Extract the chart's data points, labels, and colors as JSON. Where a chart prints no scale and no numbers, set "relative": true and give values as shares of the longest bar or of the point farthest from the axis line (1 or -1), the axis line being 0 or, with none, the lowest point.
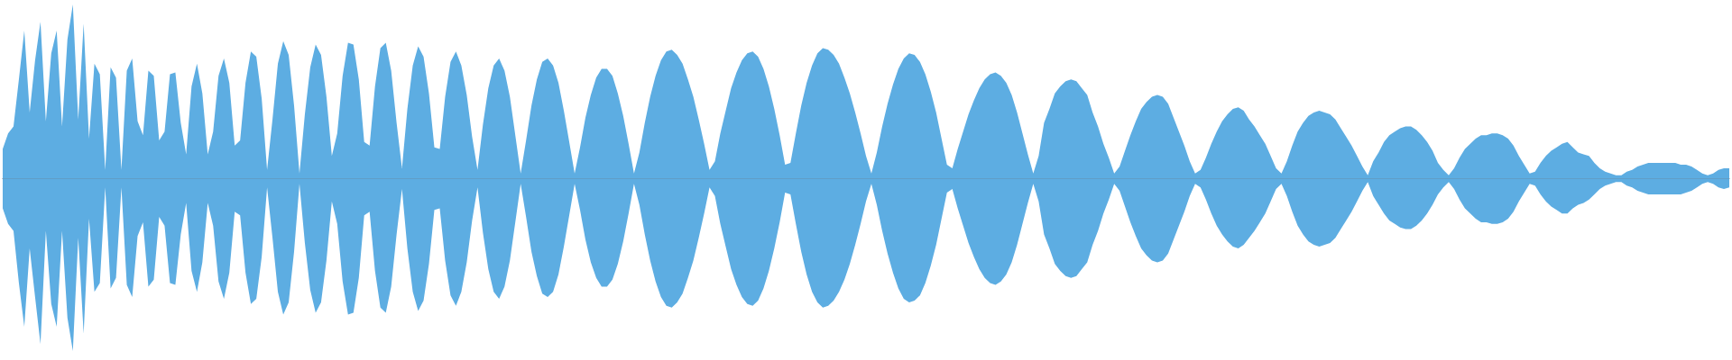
{
  "chart_data": {
    "type": "area",
    "relative": true,
    "marker": "none",
    "categories": [
      null,
      null,
      null,
      null,
      null,
      null,
      null,
      null,
      null,
      null,
      null,
      null,
      null,
      null,
      null,
      null,
      null,
      null,
      null,
      null,
      null,
      null,
      null,
      null,
      null,
      null,
      null,
      null,
      null,
      null,
      null,
      null,
      null,
      null,
      null,
      null,
      null,
      null,
      null,
      null,
      null,
      null,
      null,
      null,
      null,
      null,
      null,
      null,
      null,
      null,
      null,
      null,
      null,
      null,
      null,
      null,
      null,
      null,
      null,
      null,
      null,
      null,
      null,
      null,
      null,
      null,
      null,
      null,
      null,
      null,
      null,
      null,
      null,
      null,
      null,
      null,
      null,
      null,
      null,
      null,
      null,
      null,
      null,
      null,
      null,
      null,
      null,
      null,
      null,
      null,
      null,
      null,
      null,
      null,
      null,
      null,
      null,
      null,
      null,
      null,
      null,
      null,
      null,
      null,
      null,
      null,
      null,
      null,
      null,
      null,
      null,
      null,
      null,
      null,
      null,
      null,
      null,
      null,
      null,
      null,
      null,
      null,
      null,
      null,
      null,
      null,
      null,
      null,
      null,
      null,
      null,
      null,
      null,
      null,
      null,
      null,
      null,
      null,
      null,
      null,
      null,
      null,
      null,
      null,
      null,
      null,
      null,
      null,
      null,
      null,
      null,
      null,
      null,
      null,
      null,
      null,
      null,
      null,
      null,
      null,
      null,
      null,
      null,
      null,
      null,
      null,
      null,
      null,
      null,
      null,
      null,
      null,
      null,
      null,
      null,
      null,
      null,
      null,
      null,
      null,
      null,
      null,
      null,
      null,
      null,
      null,
      null,
      null,
      null,
      null,
      null,
      null,
      null,
      null,
      null,
      null,
      null,
      null,
      null,
      null,
      null,
      null,
      null,
      null,
      null,
      null,
      null,
      null,
      null,
      null,
      null,
      null,
      null,
      null,
      null,
      null,
      null,
      null,
      null,
      null,
      null,
      null,
      null,
      null,
      null,
      null,
      null,
      null,
      null,
      null,
      null,
      null,
      null,
      null,
      null,
      null,
      null,
      null,
      null,
      null,
      null,
      null,
      null,
      null,
      null,
      null,
      null,
      null,
      null,
      null,
      null,
      null,
      null,
      null,
      null,
      null,
      null,
      null,
      null,
      null,
      null,
      null,
      null,
      null,
      null,
      null,
      null,
      null,
      null,
      null,
      null,
      null,
      null,
      null,
      null,
      null,
      null,
      null,
      null,
      null,
      null,
      null,
      null,
      null,
      null,
      null,
      null,
      null,
      null,
      null,
      null,
      null,
      null,
      null,
      null,
      null,
      null,
      null,
      null,
      null,
      null,
      null,
      null,
      null,
      null,
      null,
      null,
      null,
      null,
      null,
      null,
      null,
      null,
      null,
      null,
      null,
      null,
      null,
      null,
      null,
      null
    ],
    "series": [
      {
        "color": "#5dade2",
        "values": [
          0.17,
          0.26,
          0.3,
          0.57,
          0.85,
          0.38,
          0.68,
          0.9,
          0.33,
          0.72,
          0.85,
          0.3,
          0.8,
          1.0,
          0.34,
          0.89,
          0.23,
          0.66,
          0.6,
          0.05,
          0.64,
          0.58,
          0.05,
          0.62,
          0.69,
          0.33,
          0.25,
          0.62,
          0.59,
          0.22,
          0.27,
          0.6,
          0.61,
          0.32,
          0.14,
          0.53,
          0.66,
          0.49,
          0.14,
          0.27,
          0.59,
          0.69,
          0.55,
          0.19,
          0.22,
          0.55,
          0.73,
          0.7,
          0.46,
          0.05,
          0.34,
          0.66,
          0.79,
          0.71,
          0.42,
          0.03,
          0.37,
          0.64,
          0.77,
          0.71,
          0.47,
          0.13,
          0.26,
          0.59,
          0.78,
          0.77,
          0.57,
          0.21,
          0.19,
          0.53,
          0.75,
          0.78,
          0.62,
          0.32,
          0.06,
          0.4,
          0.65,
          0.76,
          0.7,
          0.49,
          0.18,
          0.17,
          0.47,
          0.67,
          0.73,
          0.65,
          0.48,
          0.24,
          0.05,
          0.31,
          0.52,
          0.65,
          0.69,
          0.62,
          0.47,
          0.25,
          0.03,
          0.22,
          0.42,
          0.57,
          0.67,
          0.69,
          0.65,
          0.55,
          0.39,
          0.21,
          0.03,
          0.18,
          0.35,
          0.48,
          0.58,
          0.63,
          0.63,
          0.59,
          0.49,
          0.36,
          0.2,
          0.03,
          0.15,
          0.32,
          0.47,
          0.59,
          0.68,
          0.73,
          0.74,
          0.71,
          0.66,
          0.57,
          0.47,
          0.34,
          0.2,
          0.05,
          0.1,
          0.26,
          0.39,
          0.52,
          0.61,
          0.68,
          0.72,
          0.73,
          0.7,
          0.63,
          0.53,
          0.4,
          0.25,
          0.08,
          0.09,
          0.26,
          0.42,
          0.55,
          0.65,
          0.72,
          0.75,
          0.74,
          0.71,
          0.66,
          0.58,
          0.49,
          0.38,
          0.26,
          0.13,
          0.03,
          0.15,
          0.3,
          0.43,
          0.54,
          0.63,
          0.69,
          0.72,
          0.71,
          0.67,
          0.6,
          0.5,
          0.38,
          0.23,
          0.08,
          0.06,
          0.17,
          0.27,
          0.37,
          0.45,
          0.52,
          0.57,
          0.6,
          0.61,
          0.59,
          0.55,
          0.48,
          0.38,
          0.26,
          0.14,
          0.03,
          0.13,
          0.32,
          0.4,
          0.49,
          0.53,
          0.56,
          0.57,
          0.56,
          0.52,
          0.48,
          0.38,
          0.3,
          0.2,
          0.12,
          0.03,
          0.07,
          0.16,
          0.25,
          0.33,
          0.4,
          0.44,
          0.47,
          0.48,
          0.47,
          0.43,
          0.35,
          0.27,
          0.19,
          0.1,
          0.03,
          0.05,
          0.12,
          0.2,
          0.27,
          0.33,
          0.37,
          0.4,
          0.41,
          0.39,
          0.34,
          0.3,
          0.25,
          0.2,
          0.13,
          0.06,
          0.03,
          0.1,
          0.19,
          0.27,
          0.32,
          0.36,
          0.38,
          0.39,
          0.38,
          0.37,
          0.34,
          0.29,
          0.24,
          0.19,
          0.13,
          0.07,
          0.02,
          0.1,
          0.15,
          0.21,
          0.25,
          0.27,
          0.29,
          0.3,
          0.3,
          0.28,
          0.25,
          0.21,
          0.16,
          0.09,
          0.05,
          0.02,
          0.06,
          0.12,
          0.17,
          0.2,
          0.23,
          0.25,
          0.25,
          0.26,
          0.26,
          0.25,
          0.23,
          0.19,
          0.13,
          0.08,
          0.03,
          0.04,
          0.09,
          0.13,
          0.16,
          0.18,
          0.2,
          0.21,
          0.18,
          0.15,
          0.14,
          0.13,
          0.09,
          0.06,
          0.04,
          0.03,
          0.02,
          0.02,
          0.04,
          0.05,
          0.07,
          0.08,
          0.09,
          0.09,
          0.09,
          0.09,
          0.09,
          0.09,
          0.08,
          0.08,
          0.07,
          0.05,
          0.03,
          0.02,
          0.03,
          0.05,
          0.06,
          0.06
        ]
      },
      {
        "color": "#5dade2",
        "values": [
          -0.17,
          -0.26,
          -0.3,
          -0.6,
          -0.85,
          -0.4,
          -0.68,
          -0.95,
          -0.3,
          -0.72,
          -0.85,
          -0.3,
          -0.8,
          -0.99,
          -0.34,
          -0.89,
          -0.23,
          -0.65,
          -0.6,
          -0.05,
          -0.63,
          -0.57,
          -0.05,
          -0.61,
          -0.68,
          -0.33,
          -0.25,
          -0.62,
          -0.58,
          -0.22,
          -0.27,
          -0.6,
          -0.61,
          -0.32,
          -0.14,
          -0.53,
          -0.65,
          -0.48,
          -0.14,
          -0.27,
          -0.59,
          -0.69,
          -0.54,
          -0.19,
          -0.21,
          -0.54,
          -0.72,
          -0.69,
          -0.45,
          -0.05,
          -0.34,
          -0.65,
          -0.78,
          -0.71,
          -0.42,
          -0.03,
          -0.37,
          -0.64,
          -0.77,
          -0.71,
          -0.47,
          -0.13,
          -0.26,
          -0.59,
          -0.78,
          -0.77,
          -0.57,
          -0.21,
          -0.19,
          -0.53,
          -0.74,
          -0.77,
          -0.62,
          -0.32,
          -0.06,
          -0.4,
          -0.65,
          -0.76,
          -0.7,
          -0.49,
          -0.18,
          -0.17,
          -0.47,
          -0.67,
          -0.73,
          -0.65,
          -0.48,
          -0.24,
          -0.05,
          -0.31,
          -0.52,
          -0.65,
          -0.69,
          -0.62,
          -0.47,
          -0.25,
          -0.03,
          -0.22,
          -0.42,
          -0.56,
          -0.66,
          -0.68,
          -0.65,
          -0.55,
          -0.39,
          -0.21,
          -0.03,
          -0.18,
          -0.35,
          -0.48,
          -0.57,
          -0.62,
          -0.62,
          -0.58,
          -0.49,
          -0.36,
          -0.2,
          -0.03,
          -0.15,
          -0.32,
          -0.47,
          -0.59,
          -0.68,
          -0.73,
          -0.74,
          -0.71,
          -0.66,
          -0.57,
          -0.47,
          -0.34,
          -0.2,
          -0.05,
          -0.1,
          -0.26,
          -0.39,
          -0.52,
          -0.61,
          -0.68,
          -0.72,
          -0.73,
          -0.7,
          -0.63,
          -0.53,
          -0.4,
          -0.25,
          -0.08,
          -0.09,
          -0.26,
          -0.42,
          -0.55,
          -0.65,
          -0.71,
          -0.74,
          -0.73,
          -0.7,
          -0.65,
          -0.58,
          -0.49,
          -0.38,
          -0.26,
          -0.13,
          -0.03,
          -0.15,
          -0.3,
          -0.43,
          -0.54,
          -0.63,
          -0.69,
          -0.71,
          -0.7,
          -0.67,
          -0.6,
          -0.5,
          -0.38,
          -0.23,
          -0.08,
          -0.06,
          -0.17,
          -0.27,
          -0.37,
          -0.45,
          -0.52,
          -0.57,
          -0.6,
          -0.61,
          -0.59,
          -0.55,
          -0.48,
          -0.38,
          -0.26,
          -0.14,
          -0.03,
          -0.13,
          -0.32,
          -0.4,
          -0.49,
          -0.53,
          -0.56,
          -0.57,
          -0.56,
          -0.52,
          -0.48,
          -0.38,
          -0.3,
          -0.2,
          -0.12,
          -0.03,
          -0.07,
          -0.16,
          -0.25,
          -0.33,
          -0.4,
          -0.44,
          -0.47,
          -0.48,
          -0.47,
          -0.43,
          -0.35,
          -0.27,
          -0.19,
          -0.1,
          -0.03,
          -0.05,
          -0.12,
          -0.2,
          -0.27,
          -0.32,
          -0.36,
          -0.39,
          -0.4,
          -0.38,
          -0.34,
          -0.3,
          -0.25,
          -0.2,
          -0.13,
          -0.06,
          -0.03,
          -0.1,
          -0.19,
          -0.27,
          -0.32,
          -0.36,
          -0.38,
          -0.39,
          -0.38,
          -0.37,
          -0.34,
          -0.29,
          -0.24,
          -0.19,
          -0.13,
          -0.07,
          -0.02,
          -0.1,
          -0.15,
          -0.2,
          -0.24,
          -0.26,
          -0.28,
          -0.29,
          -0.29,
          -0.27,
          -0.24,
          -0.2,
          -0.15,
          -0.09,
          -0.05,
          -0.02,
          -0.06,
          -0.12,
          -0.17,
          -0.2,
          -0.23,
          -0.25,
          -0.25,
          -0.26,
          -0.26,
          -0.25,
          -0.23,
          -0.19,
          -0.13,
          -0.08,
          -0.03,
          -0.04,
          -0.09,
          -0.13,
          -0.16,
          -0.18,
          -0.2,
          -0.2,
          -0.17,
          -0.15,
          -0.14,
          -0.12,
          -0.09,
          -0.06,
          -0.04,
          -0.03,
          -0.02,
          -0.02,
          -0.04,
          -0.05,
          -0.07,
          -0.08,
          -0.09,
          -0.09,
          -0.09,
          -0.09,
          -0.09,
          -0.09,
          -0.09,
          -0.08,
          -0.07,
          -0.05,
          -0.03,
          -0.02,
          -0.03,
          -0.05,
          -0.06,
          -0.05
        ]
      }
    ]
  }
}
